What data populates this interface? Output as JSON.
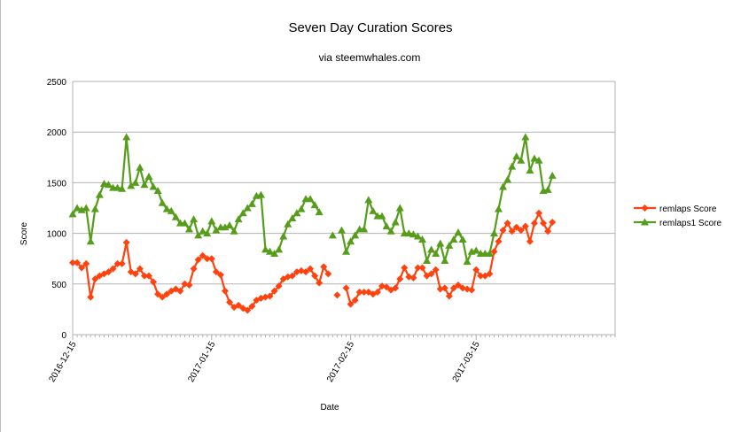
{
  "chart_data": {
    "type": "line",
    "title": "Seven Day Curation Scores",
    "subtitle": "via steemwhales.com",
    "xlabel": "Date",
    "ylabel": "Score",
    "ylim": [
      0,
      2500
    ],
    "yticks": [
      0,
      500,
      1000,
      1500,
      2000,
      2500
    ],
    "x_start": "2016-12-15",
    "x_end": "2017-04-15",
    "x_tick_labels": [
      "2016-12-15",
      "2017-01-15",
      "2017-02-15",
      "2017-03-15"
    ],
    "x_tick_dates": [
      "2016-12-15",
      "2017-01-15",
      "2017-02-15",
      "2017-03-15"
    ],
    "grid": true,
    "legend_position": "right",
    "series": [
      {
        "name": "remlaps Score",
        "color": "#ff420e",
        "marker": "diamond",
        "points": [
          [
            "2016-12-15",
            710
          ],
          [
            "2016-12-16",
            710
          ],
          [
            "2016-12-17",
            660
          ],
          [
            "2016-12-18",
            700
          ],
          [
            "2016-12-19",
            370
          ],
          [
            "2016-12-20",
            550
          ],
          [
            "2016-12-21",
            580
          ],
          [
            "2016-12-22",
            600
          ],
          [
            "2016-12-23",
            620
          ],
          [
            "2016-12-24",
            650
          ],
          [
            "2016-12-25",
            700
          ],
          [
            "2016-12-26",
            700
          ],
          [
            "2016-12-27",
            910
          ],
          [
            "2016-12-28",
            620
          ],
          [
            "2016-12-29",
            600
          ],
          [
            "2016-12-30",
            650
          ],
          [
            "2016-12-31",
            580
          ],
          [
            "2017-01-01",
            580
          ],
          [
            "2017-01-02",
            520
          ],
          [
            "2017-01-03",
            400
          ],
          [
            "2017-01-04",
            370
          ],
          [
            "2017-01-05",
            400
          ],
          [
            "2017-01-06",
            430
          ],
          [
            "2017-01-07",
            450
          ],
          [
            "2017-01-08",
            430
          ],
          [
            "2017-01-09",
            500
          ],
          [
            "2017-01-10",
            490
          ],
          [
            "2017-01-11",
            650
          ],
          [
            "2017-01-12",
            740
          ],
          [
            "2017-01-13",
            780
          ],
          [
            "2017-01-14",
            750
          ],
          [
            "2017-01-15",
            750
          ],
          [
            "2017-01-16",
            620
          ],
          [
            "2017-01-17",
            590
          ],
          [
            "2017-01-18",
            430
          ],
          [
            "2017-01-19",
            320
          ],
          [
            "2017-01-20",
            270
          ],
          [
            "2017-01-21",
            290
          ],
          [
            "2017-01-22",
            260
          ],
          [
            "2017-01-23",
            240
          ],
          [
            "2017-01-24",
            280
          ],
          [
            "2017-01-25",
            340
          ],
          [
            "2017-01-26",
            360
          ],
          [
            "2017-01-27",
            370
          ],
          [
            "2017-01-28",
            380
          ],
          [
            "2017-01-29",
            430
          ],
          [
            "2017-01-30",
            480
          ],
          [
            "2017-01-31",
            550
          ],
          [
            "2017-02-01",
            570
          ],
          [
            "2017-02-02",
            580
          ],
          [
            "2017-02-03",
            620
          ],
          [
            "2017-02-04",
            630
          ],
          [
            "2017-02-05",
            620
          ],
          [
            "2017-02-06",
            650
          ],
          [
            "2017-02-07",
            580
          ],
          [
            "2017-02-08",
            510
          ],
          [
            "2017-02-09",
            670
          ],
          [
            "2017-02-10",
            600
          ],
          null,
          [
            "2017-02-12",
            390
          ],
          [
            "2017-02-13",
            null
          ],
          [
            "2017-02-14",
            460
          ],
          [
            "2017-02-15",
            300
          ],
          [
            "2017-02-16",
            340
          ],
          [
            "2017-02-17",
            420
          ],
          [
            "2017-02-18",
            420
          ],
          [
            "2017-02-19",
            420
          ],
          [
            "2017-02-20",
            400
          ],
          [
            "2017-02-21",
            420
          ],
          [
            "2017-02-22",
            480
          ],
          [
            "2017-02-23",
            470
          ],
          [
            "2017-02-24",
            440
          ],
          [
            "2017-02-25",
            460
          ],
          [
            "2017-02-26",
            550
          ],
          [
            "2017-02-27",
            660
          ],
          [
            "2017-02-28",
            570
          ],
          [
            "2017-03-01",
            560
          ],
          [
            "2017-03-02",
            660
          ],
          [
            "2017-03-03",
            660
          ],
          [
            "2017-03-04",
            580
          ],
          [
            "2017-03-05",
            600
          ],
          [
            "2017-03-06",
            640
          ],
          [
            "2017-03-07",
            450
          ],
          [
            "2017-03-08",
            460
          ],
          [
            "2017-03-09",
            380
          ],
          [
            "2017-03-10",
            460
          ],
          [
            "2017-03-11",
            490
          ],
          [
            "2017-03-12",
            460
          ],
          [
            "2017-03-13",
            450
          ],
          [
            "2017-03-14",
            440
          ],
          [
            "2017-03-15",
            640
          ],
          [
            "2017-03-16",
            580
          ],
          [
            "2017-03-17",
            580
          ],
          [
            "2017-03-18",
            600
          ],
          [
            "2017-03-19",
            820
          ],
          [
            "2017-03-20",
            920
          ],
          [
            "2017-03-21",
            1030
          ],
          [
            "2017-03-22",
            1100
          ],
          [
            "2017-03-23",
            1020
          ],
          [
            "2017-03-24",
            1060
          ],
          [
            "2017-03-25",
            1030
          ],
          [
            "2017-03-26",
            1070
          ],
          [
            "2017-03-27",
            920
          ],
          [
            "2017-03-28",
            1100
          ],
          [
            "2017-03-29",
            1200
          ],
          [
            "2017-03-30",
            1100
          ],
          [
            "2017-03-31",
            1020
          ],
          [
            "2017-04-01",
            1110
          ]
        ]
      },
      {
        "name": "remlaps1 Score",
        "color": "#579d1c",
        "marker": "triangle",
        "points": [
          [
            "2016-12-15",
            1190
          ],
          [
            "2016-12-16",
            1250
          ],
          [
            "2016-12-17",
            1230
          ],
          [
            "2016-12-18",
            1250
          ],
          [
            "2016-12-19",
            920
          ],
          [
            "2016-12-20",
            1240
          ],
          [
            "2016-12-21",
            1380
          ],
          [
            "2016-12-22",
            1490
          ],
          [
            "2016-12-23",
            1480
          ],
          [
            "2016-12-24",
            1450
          ],
          [
            "2016-12-25",
            1450
          ],
          [
            "2016-12-26",
            1440
          ],
          [
            "2016-12-27",
            1950
          ],
          [
            "2016-12-28",
            1470
          ],
          [
            "2016-12-29",
            1500
          ],
          [
            "2016-12-30",
            1650
          ],
          [
            "2016-12-31",
            1480
          ],
          [
            "2017-01-01",
            1560
          ],
          [
            "2017-01-02",
            1460
          ],
          [
            "2017-01-03",
            1420
          ],
          [
            "2017-01-04",
            1300
          ],
          [
            "2017-01-05",
            1240
          ],
          [
            "2017-01-06",
            1220
          ],
          [
            "2017-01-07",
            1160
          ],
          [
            "2017-01-08",
            1100
          ],
          [
            "2017-01-09",
            1100
          ],
          [
            "2017-01-10",
            1040
          ],
          [
            "2017-01-11",
            1140
          ],
          [
            "2017-01-12",
            980
          ],
          [
            "2017-01-13",
            1020
          ],
          [
            "2017-01-14",
            1000
          ],
          [
            "2017-01-15",
            1120
          ],
          [
            "2017-01-16",
            1030
          ],
          [
            "2017-01-17",
            1060
          ],
          [
            "2017-01-18",
            1060
          ],
          [
            "2017-01-19",
            1080
          ],
          [
            "2017-01-20",
            1020
          ],
          [
            "2017-01-21",
            1140
          ],
          [
            "2017-01-22",
            1200
          ],
          [
            "2017-01-23",
            1250
          ],
          [
            "2017-01-24",
            1290
          ],
          [
            "2017-01-25",
            1370
          ],
          [
            "2017-01-26",
            1380
          ],
          [
            "2017-01-27",
            840
          ],
          [
            "2017-01-28",
            820
          ],
          [
            "2017-01-29",
            800
          ],
          [
            "2017-01-30",
            840
          ],
          [
            "2017-01-31",
            970
          ],
          [
            "2017-02-01",
            1090
          ],
          [
            "2017-02-02",
            1150
          ],
          [
            "2017-02-03",
            1200
          ],
          [
            "2017-02-04",
            1240
          ],
          [
            "2017-02-05",
            1340
          ],
          [
            "2017-02-06",
            1340
          ],
          [
            "2017-02-07",
            1280
          ],
          [
            "2017-02-08",
            1210
          ],
          null,
          [
            "2017-02-11",
            980
          ],
          [
            "2017-02-12",
            null
          ],
          [
            "2017-02-13",
            1030
          ],
          [
            "2017-02-14",
            820
          ],
          [
            "2017-02-15",
            920
          ],
          [
            "2017-02-16",
            980
          ],
          [
            "2017-02-17",
            1040
          ],
          [
            "2017-02-18",
            1040
          ],
          [
            "2017-02-19",
            1330
          ],
          [
            "2017-02-20",
            1220
          ],
          [
            "2017-02-21",
            1170
          ],
          [
            "2017-02-22",
            1170
          ],
          [
            "2017-02-23",
            1070
          ],
          [
            "2017-02-24",
            1020
          ],
          [
            "2017-02-25",
            1110
          ],
          [
            "2017-02-26",
            1250
          ],
          [
            "2017-02-27",
            1000
          ],
          [
            "2017-02-28",
            1000
          ],
          [
            "2017-03-01",
            990
          ],
          [
            "2017-03-02",
            970
          ],
          [
            "2017-03-03",
            940
          ],
          [
            "2017-03-04",
            730
          ],
          [
            "2017-03-05",
            840
          ],
          [
            "2017-03-06",
            800
          ],
          [
            "2017-03-07",
            900
          ],
          [
            "2017-03-08",
            730
          ],
          [
            "2017-03-09",
            880
          ],
          [
            "2017-03-10",
            940
          ],
          [
            "2017-03-11",
            1010
          ],
          [
            "2017-03-12",
            940
          ],
          [
            "2017-03-13",
            720
          ],
          [
            "2017-03-14",
            820
          ],
          [
            "2017-03-15",
            830
          ],
          [
            "2017-03-16",
            800
          ],
          [
            "2017-03-17",
            800
          ],
          [
            "2017-03-18",
            800
          ],
          [
            "2017-03-19",
            1000
          ],
          [
            "2017-03-20",
            1240
          ],
          [
            "2017-03-21",
            1460
          ],
          [
            "2017-03-22",
            1530
          ],
          [
            "2017-03-23",
            1660
          ],
          [
            "2017-03-24",
            1760
          ],
          [
            "2017-03-25",
            1720
          ],
          [
            "2017-03-26",
            1950
          ],
          [
            "2017-03-27",
            1620
          ],
          [
            "2017-03-28",
            1740
          ],
          [
            "2017-03-29",
            1720
          ],
          [
            "2017-03-30",
            1420
          ],
          [
            "2017-03-31",
            1430
          ],
          [
            "2017-04-01",
            1570
          ]
        ]
      }
    ]
  }
}
